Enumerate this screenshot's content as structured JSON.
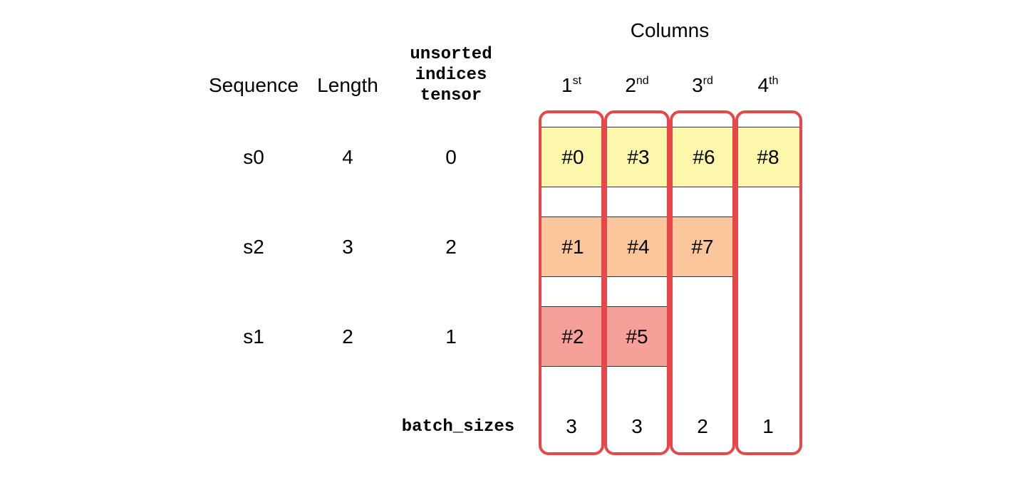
{
  "columns_title": "Columns",
  "headers": {
    "sequence": "Sequence",
    "length": "Length",
    "unsorted_line1": "unsorted",
    "unsorted_line2": "indices",
    "unsorted_line3": "tensor"
  },
  "column_labels": [
    {
      "num": "1",
      "suffix": "st"
    },
    {
      "num": "2",
      "suffix": "nd"
    },
    {
      "num": "3",
      "suffix": "rd"
    },
    {
      "num": "4",
      "suffix": "th"
    }
  ],
  "rows": [
    {
      "sequence": "s0",
      "length": "4",
      "index": "0",
      "color": "#fdf7ab",
      "cells": [
        "#0",
        "#3",
        "#6",
        "#8"
      ]
    },
    {
      "sequence": "s2",
      "length": "3",
      "index": "2",
      "color": "#fbc69b",
      "cells": [
        "#1",
        "#4",
        "#7"
      ]
    },
    {
      "sequence": "s1",
      "length": "2",
      "index": "1",
      "color": "#f5a19a",
      "cells": [
        "#2",
        "#5"
      ]
    }
  ],
  "batch_sizes_label": "batch_sizes",
  "batch_sizes": [
    "3",
    "3",
    "2",
    "1"
  ],
  "accent_color": "#e8474a"
}
